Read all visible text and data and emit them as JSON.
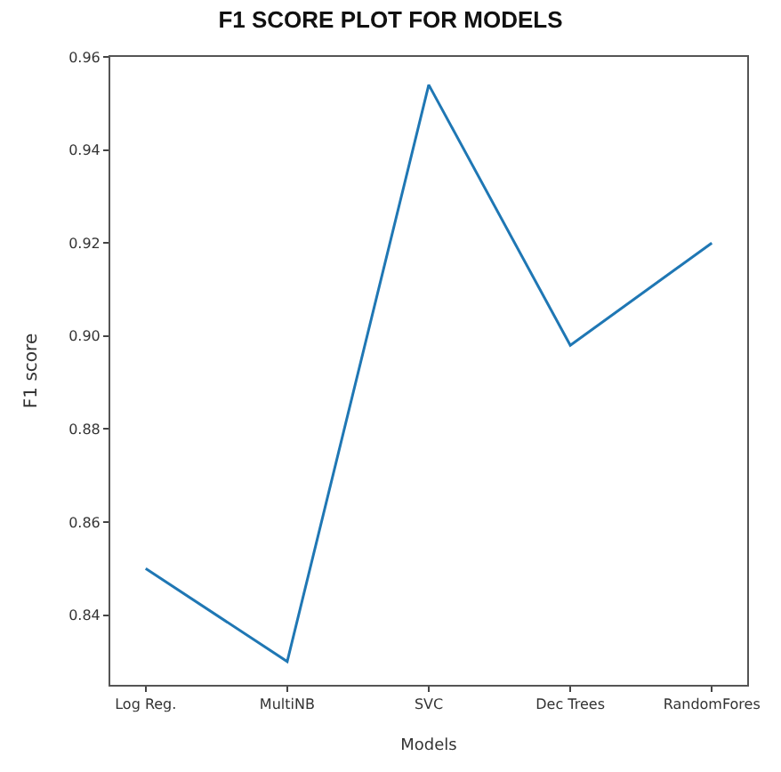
{
  "chart_data": {
    "type": "line",
    "title": "F1 SCORE PLOT FOR MODELS",
    "xlabel": "Models",
    "ylabel": "F1 score",
    "categories": [
      "Log Reg.",
      "MultiNB",
      "SVC",
      "Dec Trees",
      "RandomFores"
    ],
    "series": [
      {
        "color": "#1f77b4",
        "values": [
          0.85,
          0.83,
          0.954,
          0.898,
          0.92
        ]
      }
    ],
    "ylim": [
      0.825,
      0.96
    ],
    "yticks": [
      {
        "value": 0.84,
        "label": "0.84"
      },
      {
        "value": 0.86,
        "label": "0.86"
      },
      {
        "value": 0.88,
        "label": "0.88"
      },
      {
        "value": 0.9,
        "label": "0.90"
      },
      {
        "value": 0.92,
        "label": "0.92"
      },
      {
        "value": 0.94,
        "label": "0.94"
      },
      {
        "value": 0.96,
        "label": "0.96"
      }
    ],
    "marker": "none",
    "line_style": "solid"
  }
}
